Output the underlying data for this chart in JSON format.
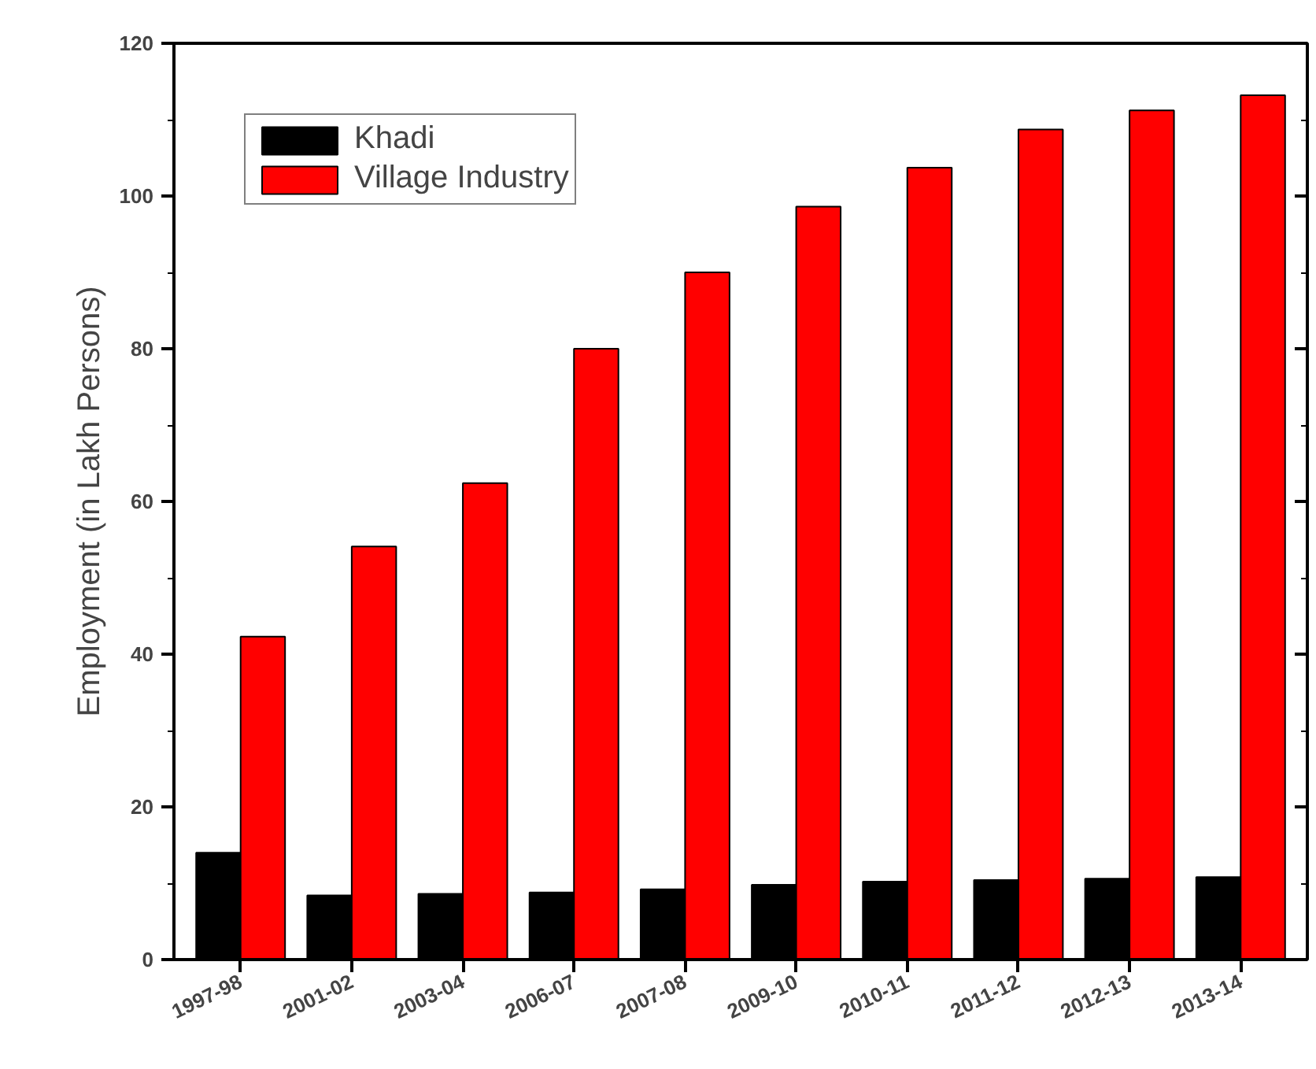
{
  "chart_data": {
    "type": "bar",
    "ylabel": "Employment (in Lakh Persons)",
    "categories": [
      "1997-98",
      "2001-02",
      "2003-04",
      "2006-07",
      "2007-08",
      "2009-10",
      "2010-11",
      "2011-12",
      "2012-13",
      "2013-14"
    ],
    "series": [
      {
        "name": "Khadi",
        "color": "#000000",
        "values": [
          14.0,
          8.4,
          8.6,
          8.8,
          9.2,
          9.8,
          10.2,
          10.4,
          10.6,
          10.8
        ]
      },
      {
        "name": "Village Industry",
        "color": "#ff0000",
        "values": [
          42.3,
          54.1,
          62.4,
          80.0,
          90.0,
          98.6,
          103.7,
          108.7,
          111.2,
          113.2
        ]
      }
    ],
    "ylim": [
      0,
      120
    ],
    "yticks": [
      0,
      20,
      40,
      60,
      80,
      100,
      120
    ],
    "grid": false,
    "legend": "top left"
  }
}
